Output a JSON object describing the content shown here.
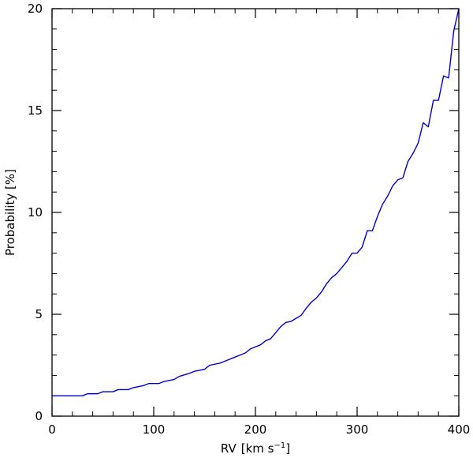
{
  "chart_data": {
    "type": "line",
    "title": "",
    "xlabel": "RV",
    "xlabel_unit_prefix": "km s",
    "xlabel_unit_exponent": "−1",
    "ylabel": "Probability [%]",
    "xlim": [
      0,
      400
    ],
    "ylim": [
      0,
      20
    ],
    "grid": false,
    "x_major_ticks": [
      0,
      100,
      200,
      300,
      400
    ],
    "x_minor_step": 20,
    "y_major_ticks": [
      0,
      5,
      10,
      15,
      20
    ],
    "y_minor_step": 1,
    "line_color": "#0000cc",
    "series": [
      {
        "name": "",
        "x": [
          0,
          20,
          30,
          35,
          45,
          50,
          60,
          65,
          75,
          80,
          90,
          95,
          105,
          110,
          120,
          125,
          135,
          140,
          150,
          155,
          165,
          170,
          180,
          185,
          190,
          195,
          200,
          205,
          210,
          215,
          220,
          225,
          230,
          235,
          240,
          245,
          250,
          255,
          260,
          265,
          270,
          275,
          280,
          285,
          290,
          295,
          300,
          305,
          310,
          315,
          320,
          325,
          330,
          335,
          340,
          345,
          350,
          355,
          360,
          365,
          370,
          375,
          380,
          385,
          390,
          395,
          400
        ],
        "y": [
          1.0,
          1.0,
          1.0,
          1.1,
          1.1,
          1.2,
          1.2,
          1.3,
          1.3,
          1.4,
          1.5,
          1.6,
          1.6,
          1.7,
          1.8,
          1.95,
          2.1,
          2.2,
          2.3,
          2.5,
          2.6,
          2.7,
          2.9,
          3.0,
          3.1,
          3.3,
          3.4,
          3.5,
          3.7,
          3.8,
          4.1,
          4.4,
          4.6,
          4.65,
          4.8,
          4.95,
          5.3,
          5.6,
          5.8,
          6.1,
          6.5,
          6.8,
          7.0,
          7.3,
          7.6,
          8.0,
          8.0,
          8.3,
          9.1,
          9.1,
          9.8,
          10.4,
          10.8,
          11.3,
          11.6,
          11.7,
          12.5,
          12.9,
          13.4,
          14.4,
          14.2,
          15.5,
          15.5,
          16.7,
          16.6,
          18.9,
          20.0
        ]
      }
    ]
  }
}
